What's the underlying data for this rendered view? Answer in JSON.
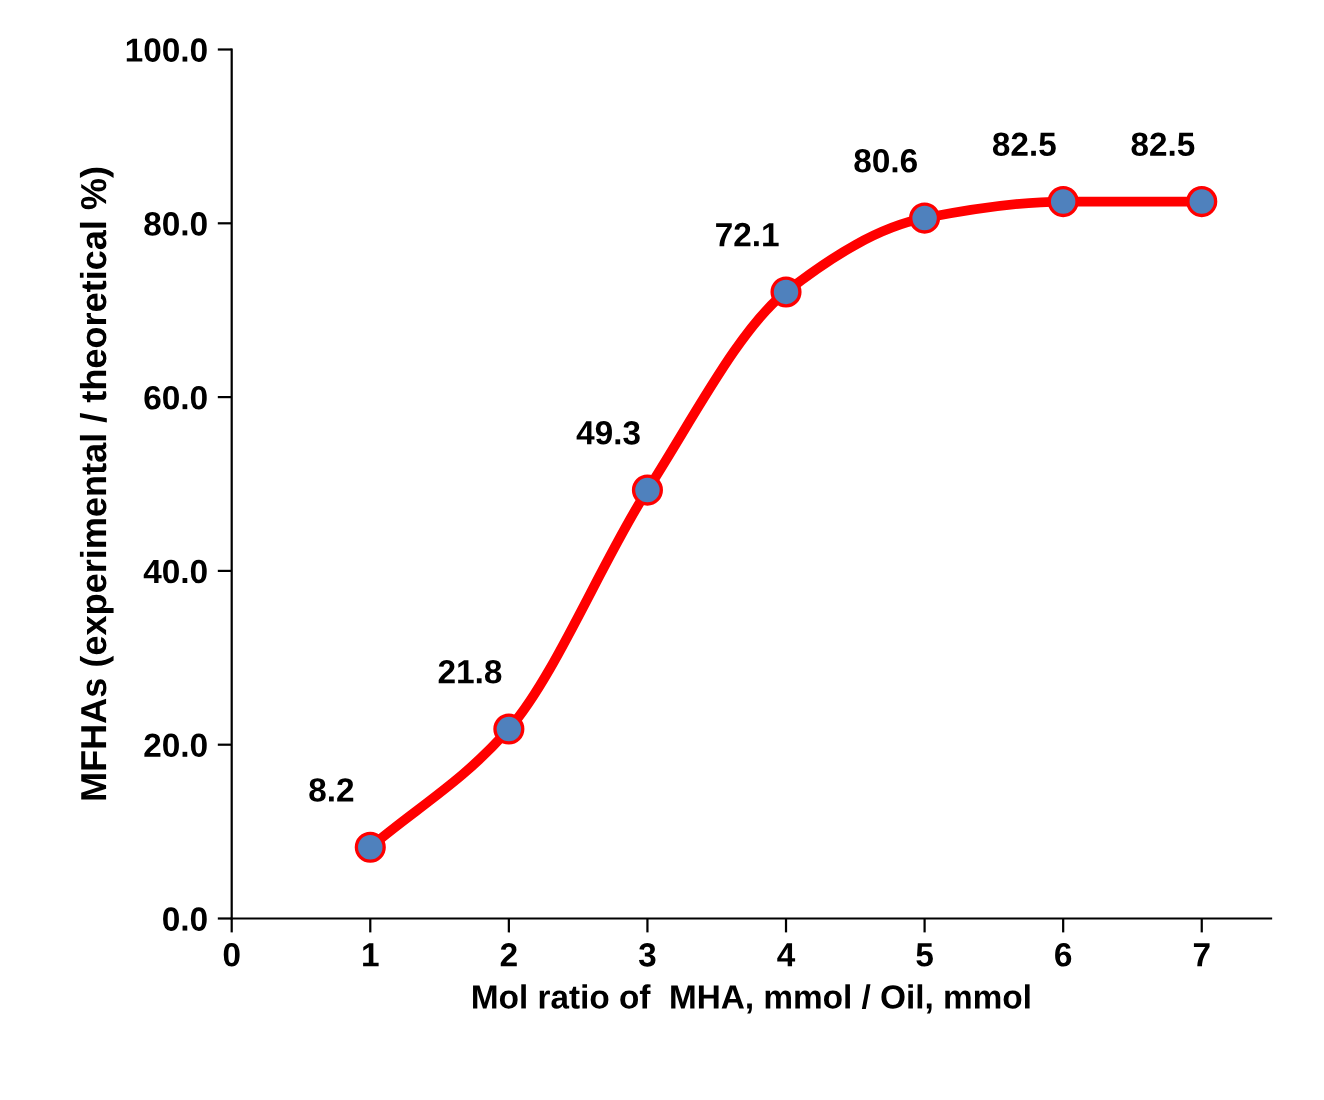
{
  "chart_data": {
    "type": "line",
    "xlabel": "Mol ratio of  MHA, mmol / Oil, mmol",
    "ylabel": "MFHAs (experimental / theoretical %)",
    "x": [
      1,
      2,
      3,
      4,
      5,
      6,
      7
    ],
    "series": [
      {
        "color": "#ff0000",
        "values": [
          8.2,
          21.8,
          49.3,
          72.1,
          80.6,
          82.5,
          82.5
        ]
      }
    ],
    "marker": "circle",
    "line_style": "solid",
    "data_labels": true,
    "grid": false,
    "legend": false,
    "xlim": [
      0,
      7.5
    ],
    "xticks": [
      0,
      1,
      2,
      3,
      4,
      5,
      6,
      7
    ],
    "ylim": [
      0,
      100
    ],
    "yticks": [
      {
        "value": 0,
        "label": "0.0"
      },
      {
        "value": 20,
        "label": "20.0"
      },
      {
        "value": 40,
        "label": "40.0"
      },
      {
        "value": 60,
        "label": "60.0"
      },
      {
        "value": 80,
        "label": "80.0"
      },
      {
        "value": 100,
        "label": "100.0"
      }
    ]
  }
}
